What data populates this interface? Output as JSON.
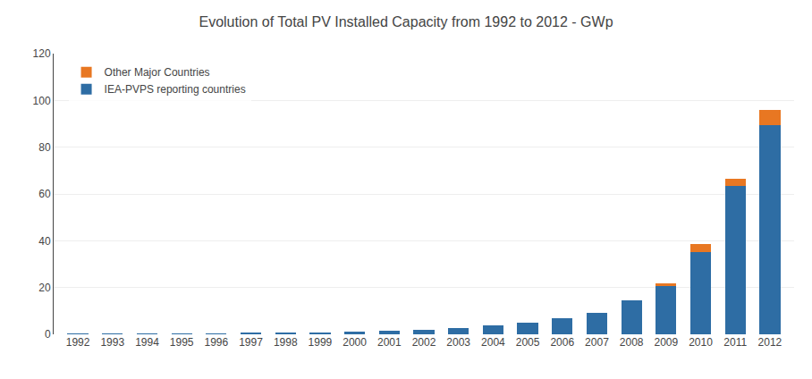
{
  "chart_data": {
    "type": "bar",
    "stacked": true,
    "title": "Evolution of Total PV Installed Capacity from 1992 to 2012 - GWp",
    "categories": [
      "1992",
      "1993",
      "1994",
      "1995",
      "1996",
      "1997",
      "1998",
      "1999",
      "2000",
      "2001",
      "2002",
      "2003",
      "2004",
      "2005",
      "2006",
      "2007",
      "2008",
      "2009",
      "2010",
      "2011",
      "2012"
    ],
    "series": [
      {
        "name": "IEA-PVPS reporting countries",
        "color": "#2E6DA4",
        "values": [
          0.1,
          0.15,
          0.2,
          0.25,
          0.3,
          0.4,
          0.5,
          0.8,
          1.1,
          1.4,
          1.8,
          2.8,
          4.0,
          5.1,
          6.7,
          9.2,
          14.7,
          21.0,
          35.0,
          63.5,
          89.5
        ]
      },
      {
        "name": "Other Major Countries",
        "color": "#E87722",
        "values": [
          0.0,
          0.0,
          0.0,
          0.0,
          0.0,
          0.0,
          0.0,
          0.0,
          0.0,
          0.0,
          0.0,
          0.0,
          0.0,
          0.0,
          0.0,
          0.0,
          0.0,
          0.7,
          3.5,
          3.0,
          6.5
        ]
      }
    ],
    "ylim": [
      0,
      120
    ],
    "yticks": [
      0,
      20,
      40,
      60,
      80,
      100,
      120
    ],
    "grid": true,
    "legend": "upper left"
  }
}
